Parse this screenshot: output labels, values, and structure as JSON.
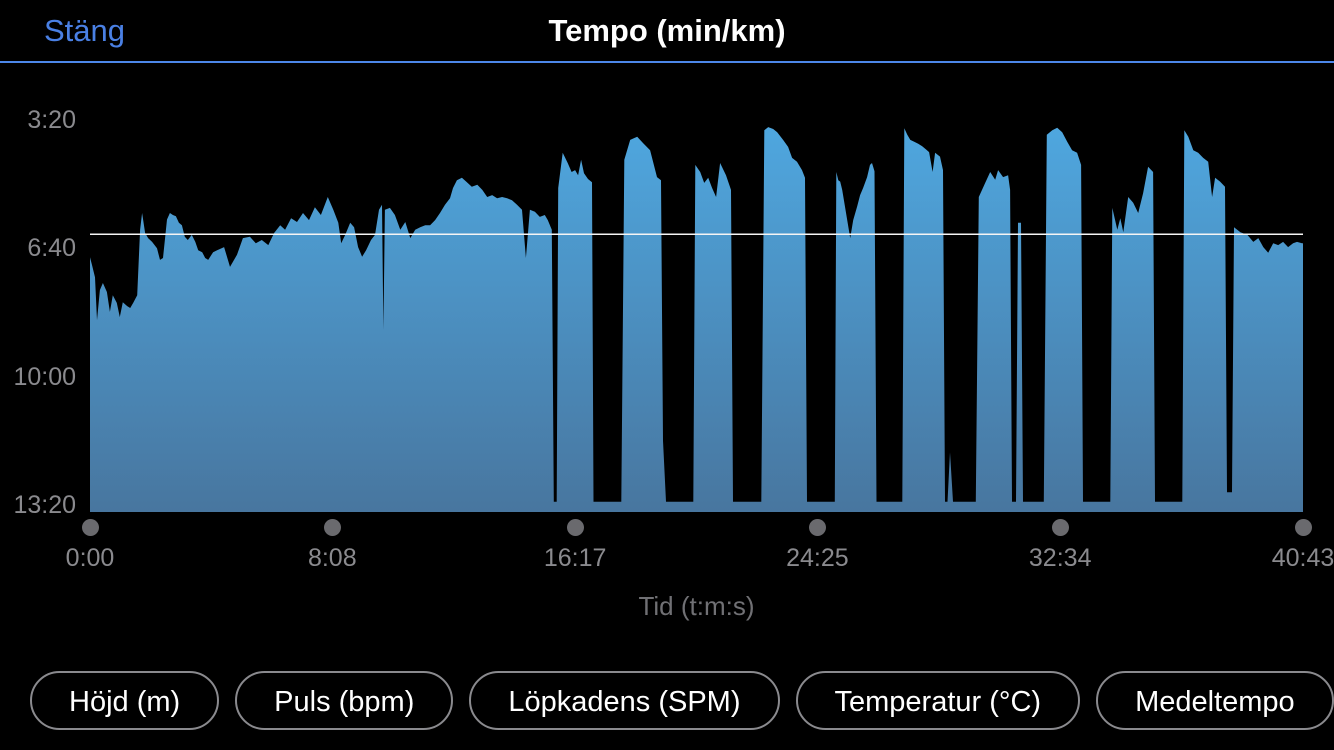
{
  "header": {
    "close_label": "Stäng",
    "title": "Tempo (min/km)"
  },
  "chart_data": {
    "type": "area",
    "title": "Tempo (min/km)",
    "xlabel": "Tid (t:m:s)",
    "ylabel": "Tempo (min/km)",
    "x_unit": "seconds",
    "y_unit": "pace seconds per km (inverted axis: fast pace at top)",
    "x_range_s": [
      0,
      2443
    ],
    "y_range_pace_s": [
      200,
      800
    ],
    "x_ticks": [
      {
        "label": "0:00",
        "t": 0
      },
      {
        "label": "8:08",
        "t": 488
      },
      {
        "label": "16:17",
        "t": 977
      },
      {
        "label": "24:25",
        "t": 1465
      },
      {
        "label": "32:34",
        "t": 1954
      },
      {
        "label": "40:43",
        "t": 2443
      }
    ],
    "y_ticks": [
      {
        "label": "3:20",
        "pace": 200
      },
      {
        "label": "6:40",
        "pace": 400
      },
      {
        "label": "10:00",
        "pace": 600
      },
      {
        "label": "13:20",
        "pace": 800
      }
    ],
    "average_line": {
      "pace_s": 378
    },
    "grid": false,
    "legend": "none",
    "colors": {
      "area_top": "#4FA9E2",
      "area_bottom": "#48769F",
      "average_line": "#F5F5F5",
      "accent_blue": "#4C87E9",
      "close_blue": "#4A80E4",
      "axis_text": "#8A8A8E",
      "axis_title_text": "#707074",
      "dot": "#6A6A6E",
      "title_text": "#FEFEFE",
      "background": "#000000"
    },
    "points": [
      [
        0,
        414
      ],
      [
        4,
        426
      ],
      [
        10,
        445
      ],
      [
        14,
        512
      ],
      [
        20,
        465
      ],
      [
        26,
        454
      ],
      [
        34,
        468
      ],
      [
        40,
        499
      ],
      [
        46,
        473
      ],
      [
        54,
        485
      ],
      [
        60,
        507
      ],
      [
        66,
        484
      ],
      [
        75,
        490
      ],
      [
        81,
        493
      ],
      [
        87,
        485
      ],
      [
        95,
        473
      ],
      [
        101,
        371
      ],
      [
        105,
        345
      ],
      [
        111,
        376
      ],
      [
        117,
        384
      ],
      [
        125,
        390
      ],
      [
        135,
        400
      ],
      [
        141,
        418
      ],
      [
        147,
        415
      ],
      [
        155,
        355
      ],
      [
        161,
        345
      ],
      [
        167,
        348
      ],
      [
        173,
        350
      ],
      [
        179,
        360
      ],
      [
        185,
        364
      ],
      [
        191,
        382
      ],
      [
        197,
        387
      ],
      [
        205,
        379
      ],
      [
        212,
        390
      ],
      [
        218,
        403
      ],
      [
        226,
        406
      ],
      [
        232,
        415
      ],
      [
        238,
        418
      ],
      [
        248,
        406
      ],
      [
        256,
        403
      ],
      [
        270,
        398
      ],
      [
        282,
        429
      ],
      [
        296,
        410
      ],
      [
        308,
        384
      ],
      [
        322,
        382
      ],
      [
        334,
        392
      ],
      [
        346,
        387
      ],
      [
        359,
        395
      ],
      [
        371,
        376
      ],
      [
        383,
        364
      ],
      [
        393,
        371
      ],
      [
        405,
        353
      ],
      [
        417,
        359
      ],
      [
        429,
        345
      ],
      [
        441,
        356
      ],
      [
        453,
        336
      ],
      [
        465,
        348
      ],
      [
        479,
        320
      ],
      [
        490,
        340
      ],
      [
        500,
        360
      ],
      [
        506,
        392
      ],
      [
        514,
        379
      ],
      [
        524,
        360
      ],
      [
        532,
        367
      ],
      [
        540,
        398
      ],
      [
        548,
        413
      ],
      [
        556,
        403
      ],
      [
        566,
        387
      ],
      [
        574,
        379
      ],
      [
        582,
        340
      ],
      [
        588,
        332
      ],
      [
        591,
        527
      ],
      [
        594,
        340
      ],
      [
        604,
        337
      ],
      [
        614,
        348
      ],
      [
        625,
        371
      ],
      [
        635,
        359
      ],
      [
        645,
        384
      ],
      [
        655,
        371
      ],
      [
        665,
        367
      ],
      [
        675,
        364
      ],
      [
        685,
        364
      ],
      [
        695,
        356
      ],
      [
        705,
        345
      ],
      [
        715,
        332
      ],
      [
        725,
        322
      ],
      [
        731,
        306
      ],
      [
        739,
        294
      ],
      [
        749,
        290
      ],
      [
        759,
        297
      ],
      [
        769,
        304
      ],
      [
        780,
        301
      ],
      [
        790,
        309
      ],
      [
        800,
        320
      ],
      [
        810,
        317
      ],
      [
        820,
        322
      ],
      [
        830,
        320
      ],
      [
        840,
        322
      ],
      [
        850,
        325
      ],
      [
        860,
        332
      ],
      [
        870,
        340
      ],
      [
        878,
        415
      ],
      [
        886,
        340
      ],
      [
        896,
        343
      ],
      [
        906,
        351
      ],
      [
        916,
        348
      ],
      [
        922,
        356
      ],
      [
        930,
        371
      ],
      [
        934,
        795
      ],
      [
        940,
        795
      ],
      [
        943,
        306
      ],
      [
        952,
        251
      ],
      [
        962,
        267
      ],
      [
        970,
        281
      ],
      [
        977,
        278
      ],
      [
        983,
        286
      ],
      [
        989,
        262
      ],
      [
        995,
        283
      ],
      [
        1003,
        292
      ],
      [
        1011,
        297
      ],
      [
        1014,
        795
      ],
      [
        1070,
        795
      ],
      [
        1076,
        262
      ],
      [
        1088,
        231
      ],
      [
        1102,
        226
      ],
      [
        1114,
        236
      ],
      [
        1128,
        247
      ],
      [
        1142,
        289
      ],
      [
        1150,
        294
      ],
      [
        1154,
        700
      ],
      [
        1160,
        795
      ],
      [
        1215,
        795
      ],
      [
        1219,
        270
      ],
      [
        1229,
        281
      ],
      [
        1237,
        298
      ],
      [
        1245,
        290
      ],
      [
        1253,
        306
      ],
      [
        1261,
        320
      ],
      [
        1269,
        267
      ],
      [
        1281,
        286
      ],
      [
        1291,
        309
      ],
      [
        1295,
        795
      ],
      [
        1352,
        795
      ],
      [
        1358,
        216
      ],
      [
        1366,
        211
      ],
      [
        1376,
        214
      ],
      [
        1384,
        219
      ],
      [
        1396,
        231
      ],
      [
        1406,
        242
      ],
      [
        1414,
        259
      ],
      [
        1424,
        265
      ],
      [
        1434,
        278
      ],
      [
        1440,
        290
      ],
      [
        1444,
        795
      ],
      [
        1500,
        795
      ],
      [
        1503,
        281
      ],
      [
        1507,
        294
      ],
      [
        1511,
        296
      ],
      [
        1515,
        309
      ],
      [
        1531,
        384
      ],
      [
        1537,
        356
      ],
      [
        1545,
        335
      ],
      [
        1551,
        317
      ],
      [
        1557,
        306
      ],
      [
        1565,
        289
      ],
      [
        1571,
        270
      ],
      [
        1575,
        267
      ],
      [
        1580,
        280
      ],
      [
        1584,
        795
      ],
      [
        1636,
        795
      ],
      [
        1640,
        213
      ],
      [
        1646,
        223
      ],
      [
        1652,
        231
      ],
      [
        1660,
        234
      ],
      [
        1668,
        237
      ],
      [
        1676,
        241
      ],
      [
        1684,
        246
      ],
      [
        1690,
        250
      ],
      [
        1697,
        281
      ],
      [
        1702,
        251
      ],
      [
        1712,
        257
      ],
      [
        1718,
        278
      ],
      [
        1722,
        795
      ],
      [
        1727,
        795
      ],
      [
        1732,
        718
      ],
      [
        1738,
        795
      ],
      [
        1784,
        795
      ],
      [
        1790,
        320
      ],
      [
        1803,
        298
      ],
      [
        1813,
        281
      ],
      [
        1823,
        293
      ],
      [
        1829,
        278
      ],
      [
        1839,
        289
      ],
      [
        1849,
        286
      ],
      [
        1853,
        309
      ],
      [
        1857,
        795
      ],
      [
        1865,
        795
      ],
      [
        1869,
        360
      ],
      [
        1875,
        360
      ],
      [
        1879,
        795
      ],
      [
        1921,
        795
      ],
      [
        1927,
        223
      ],
      [
        1938,
        216
      ],
      [
        1948,
        212
      ],
      [
        1958,
        219
      ],
      [
        1968,
        234
      ],
      [
        1978,
        247
      ],
      [
        1988,
        251
      ],
      [
        1996,
        270
      ],
      [
        2000,
        795
      ],
      [
        2055,
        795
      ],
      [
        2059,
        337
      ],
      [
        2069,
        371
      ],
      [
        2075,
        353
      ],
      [
        2081,
        375
      ],
      [
        2091,
        320
      ],
      [
        2101,
        329
      ],
      [
        2111,
        345
      ],
      [
        2121,
        314
      ],
      [
        2131,
        273
      ],
      [
        2141,
        281
      ],
      [
        2145,
        795
      ],
      [
        2200,
        795
      ],
      [
        2204,
        216
      ],
      [
        2212,
        226
      ],
      [
        2222,
        247
      ],
      [
        2232,
        251
      ],
      [
        2242,
        259
      ],
      [
        2252,
        265
      ],
      [
        2260,
        320
      ],
      [
        2266,
        290
      ],
      [
        2276,
        296
      ],
      [
        2286,
        304
      ],
      [
        2290,
        780
      ],
      [
        2300,
        780
      ],
      [
        2304,
        367
      ],
      [
        2317,
        375
      ],
      [
        2331,
        379
      ],
      [
        2343,
        390
      ],
      [
        2353,
        384
      ],
      [
        2363,
        398
      ],
      [
        2373,
        407
      ],
      [
        2383,
        392
      ],
      [
        2393,
        395
      ],
      [
        2403,
        390
      ],
      [
        2413,
        398
      ],
      [
        2423,
        392
      ],
      [
        2431,
        390
      ],
      [
        2441,
        392
      ],
      [
        2443,
        392
      ]
    ]
  },
  "footer": {
    "buttons": [
      {
        "label": "Höjd (m)"
      },
      {
        "label": "Puls (bpm)"
      },
      {
        "label": "Löpkadens (SPM)"
      },
      {
        "label": "Temperatur (°C)"
      },
      {
        "label": "Medeltempo"
      }
    ]
  }
}
